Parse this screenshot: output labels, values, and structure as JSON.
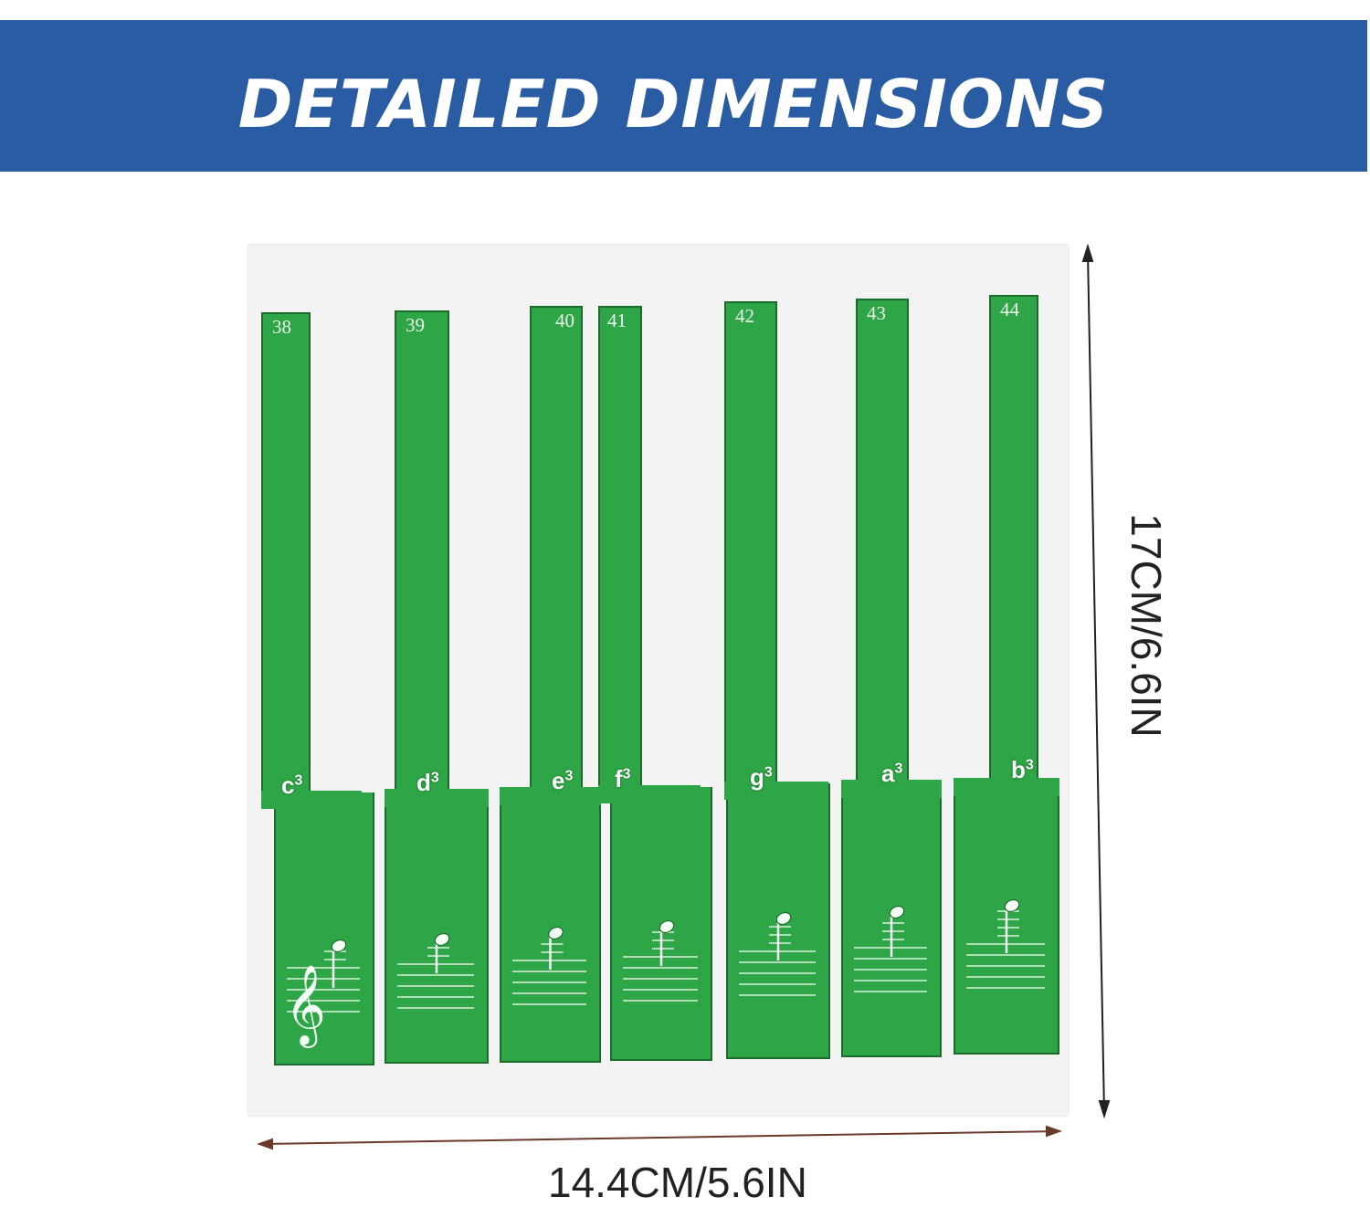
{
  "banner": {
    "title": "DETAILED DIMENSIONS",
    "color": "#2a5ca4"
  },
  "key_color": "#2ea546",
  "keys": [
    {
      "number": "38",
      "letter": "c",
      "octave": "3",
      "clef": true
    },
    {
      "number": "39",
      "letter": "d",
      "octave": "3",
      "clef": false
    },
    {
      "number": "40",
      "letter": "e",
      "octave": "3",
      "clef": false
    },
    {
      "number": "41",
      "letter": "f",
      "octave": "3",
      "clef": false
    },
    {
      "number": "42",
      "letter": "g",
      "octave": "3",
      "clef": false
    },
    {
      "number": "43",
      "letter": "a",
      "octave": "3",
      "clef": false
    },
    {
      "number": "44",
      "letter": "b",
      "octave": "3",
      "clef": false
    }
  ],
  "dimensions": {
    "width": "14.4CM/5.6IN",
    "height": "17CM/6.6IN"
  }
}
